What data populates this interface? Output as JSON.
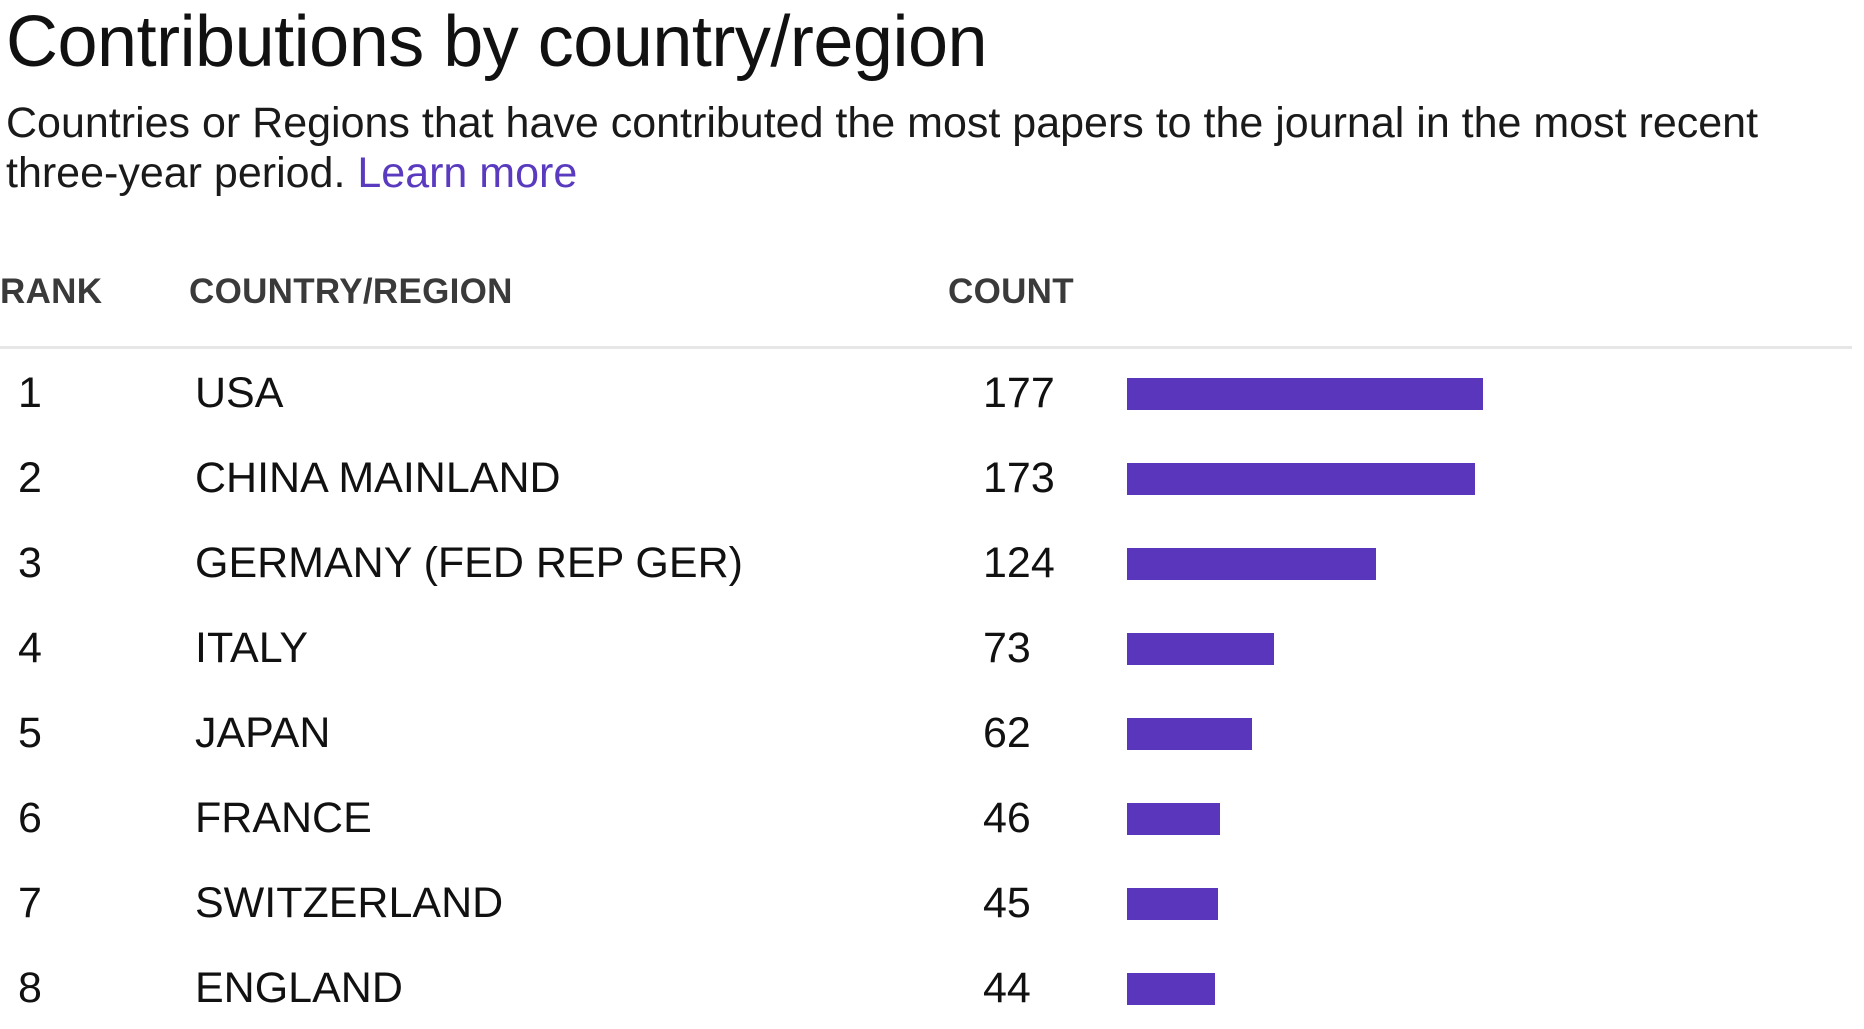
{
  "header": {
    "title": "Contributions by country/region",
    "subtitle": "Countries or Regions that have contributed the most papers to the journal in the most recent three-year period.",
    "learn_more": "Learn more"
  },
  "table": {
    "columns": {
      "rank": "RANK",
      "country": "COUNTRY/REGION",
      "count": "COUNT"
    },
    "rows": [
      {
        "rank": "1",
        "country": "USA",
        "count": "177"
      },
      {
        "rank": "2",
        "country": "CHINA MAINLAND",
        "count": "173"
      },
      {
        "rank": "3",
        "country": "GERMANY (FED REP GER)",
        "count": "124"
      },
      {
        "rank": "4",
        "country": "ITALY",
        "count": "73"
      },
      {
        "rank": "5",
        "country": "JAPAN",
        "count": "62"
      },
      {
        "rank": "6",
        "country": "FRANCE",
        "count": "46"
      },
      {
        "rank": "7",
        "country": "SWITZERLAND",
        "count": "45"
      },
      {
        "rank": "8",
        "country": "ENGLAND",
        "count": "44"
      }
    ]
  },
  "chart_data": {
    "type": "bar",
    "orientation": "horizontal",
    "categories": [
      "USA",
      "CHINA MAINLAND",
      "GERMANY (FED REP GER)",
      "ITALY",
      "JAPAN",
      "FRANCE",
      "SWITZERLAND",
      "ENGLAND"
    ],
    "values": [
      177,
      173,
      124,
      73,
      62,
      46,
      45,
      44
    ],
    "title": "",
    "xlabel": "",
    "ylabel": "",
    "xlim": [
      0,
      177
    ],
    "grid": false,
    "legend": "none"
  },
  "colors": {
    "accent": "#5a36bd",
    "link": "#5a3bbf",
    "divider": "#e6e6e6"
  }
}
